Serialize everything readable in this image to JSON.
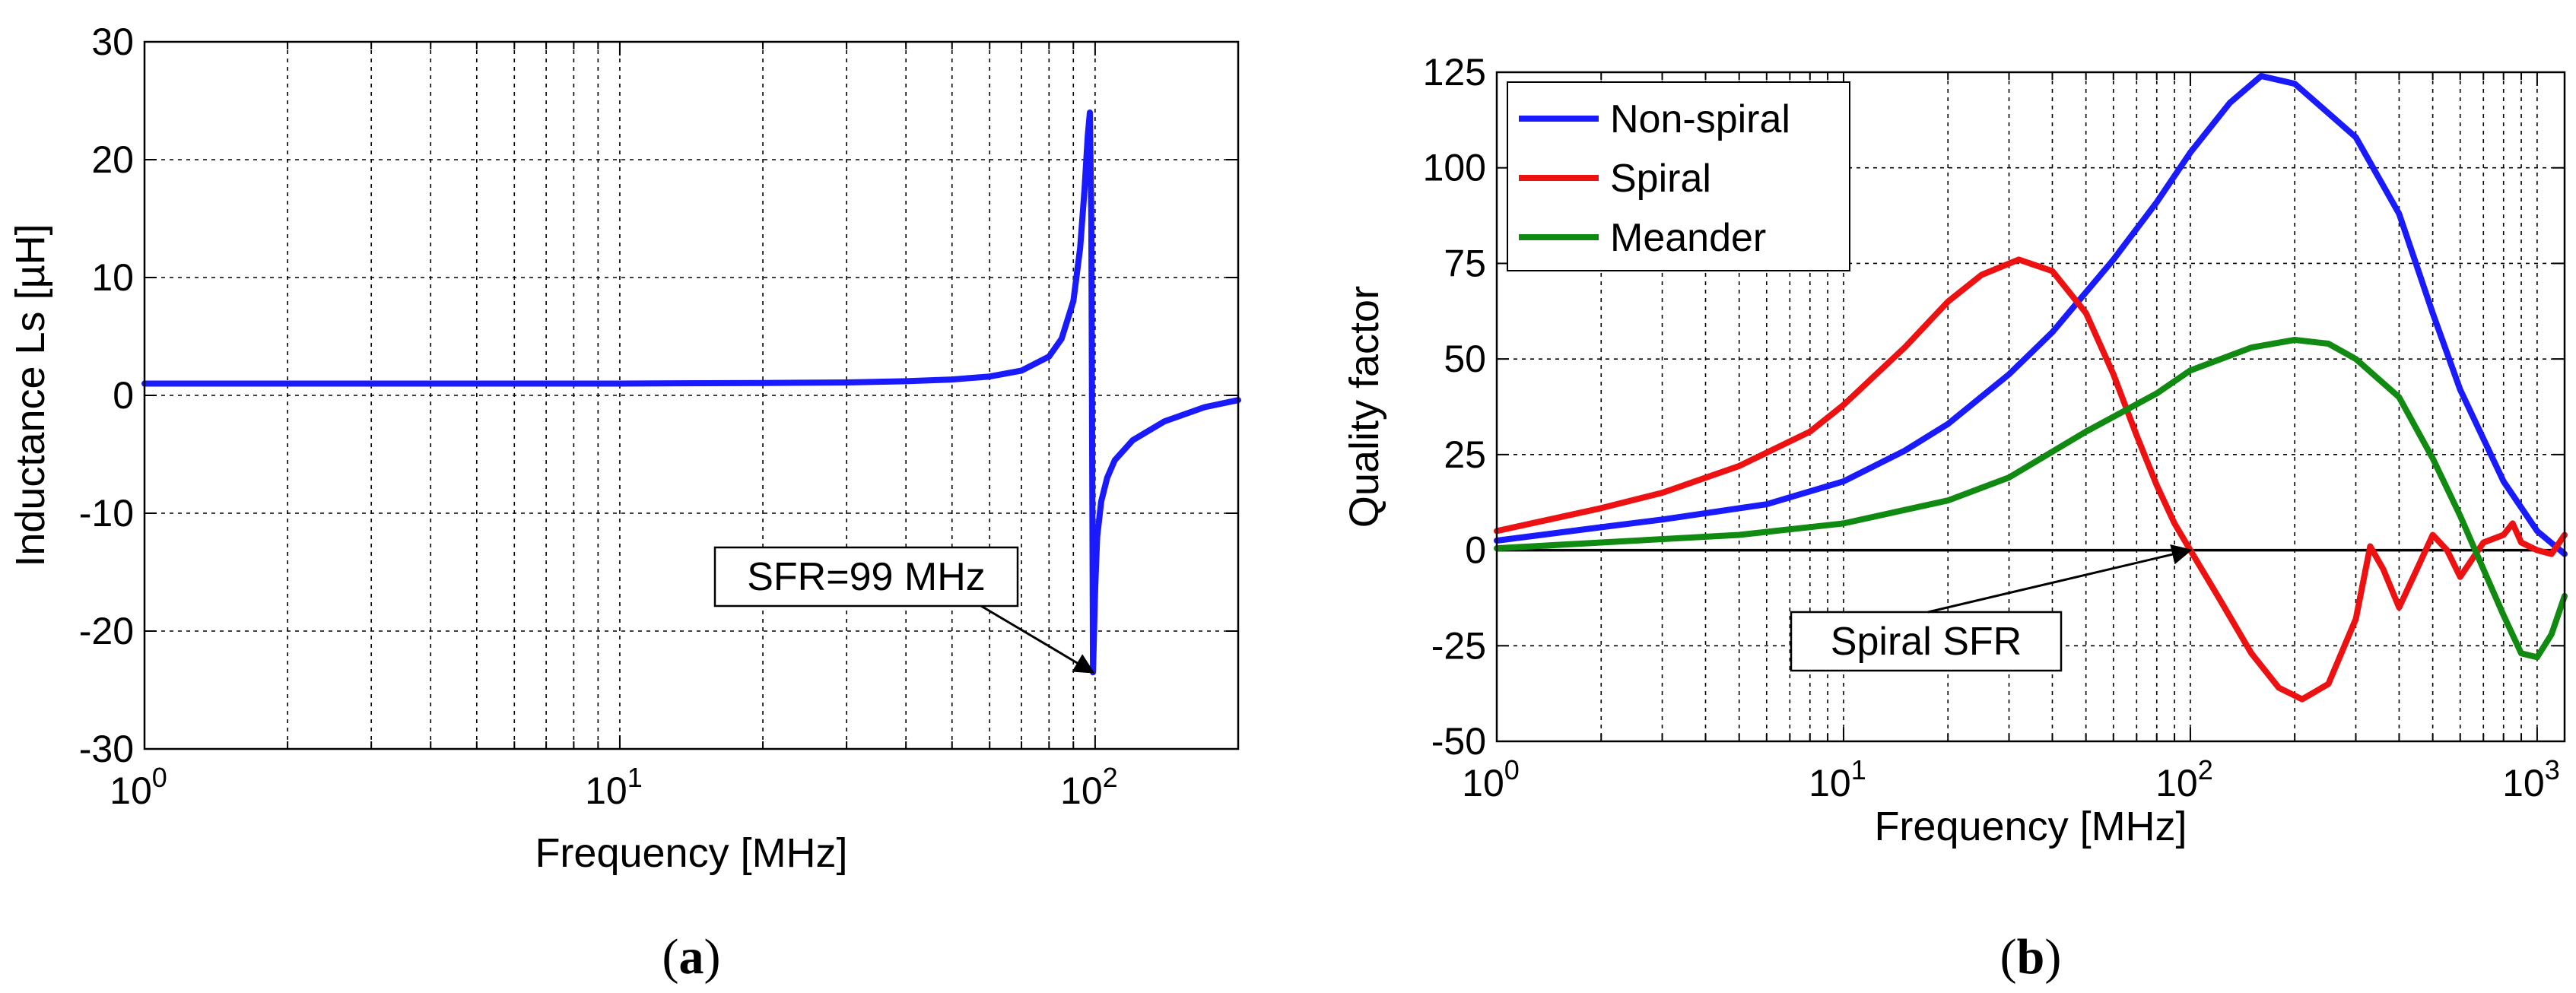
{
  "chart_data": [
    {
      "type": "line",
      "panel_label_open": "(",
      "panel_label_letter": "a",
      "panel_label_close": ")",
      "xlabel": "Frequency [MHz]",
      "ylabel": "Inductance Ls [µH]",
      "xscale": "log",
      "xlim": [
        1,
        200
      ],
      "ylim": [
        -30,
        30
      ],
      "grid": true,
      "xticks": [
        {
          "value": 1,
          "base": "10",
          "exp": "0"
        },
        {
          "value": 10,
          "base": "10",
          "exp": "1"
        },
        {
          "value": 100,
          "base": "10",
          "exp": "2"
        }
      ],
      "yticks": [
        {
          "value": 30,
          "label": "30"
        },
        {
          "value": 20,
          "label": "20"
        },
        {
          "value": 10,
          "label": "10"
        },
        {
          "value": 0,
          "label": "0"
        },
        {
          "value": -10,
          "label": "-10"
        },
        {
          "value": -20,
          "label": "-20"
        },
        {
          "value": -30,
          "label": "-30"
        }
      ],
      "series": [
        {
          "name": "Inductance",
          "color": "#1a1aff",
          "x": [
            1,
            2,
            5,
            10,
            20,
            30,
            40,
            50,
            60,
            70,
            80,
            85,
            90,
            93,
            95,
            96.5,
            97.5,
            98.2,
            99,
            100,
            101,
            103,
            106,
            110,
            120,
            140,
            170,
            200
          ],
          "y": [
            1.0,
            1.0,
            1.0,
            1.0,
            1.05,
            1.1,
            1.2,
            1.35,
            1.6,
            2.1,
            3.3,
            4.8,
            8.0,
            12.5,
            17.5,
            22.0,
            24.0,
            15.0,
            -23.5,
            -16.5,
            -12.0,
            -9.0,
            -7.0,
            -5.5,
            -3.8,
            -2.2,
            -1.0,
            -0.4
          ]
        }
      ],
      "annotation": {
        "text": "SFR=99 MHz",
        "x": 99,
        "y": -23.5
      }
    },
    {
      "type": "line",
      "panel_label_open": "(",
      "panel_label_letter": "b",
      "panel_label_close": ")",
      "xlabel": "Frequency [MHz]",
      "ylabel": "Quality factor",
      "xscale": "log",
      "xlim": [
        1,
        1200
      ],
      "ylim": [
        -50,
        125
      ],
      "grid": true,
      "legend_position": "top-left",
      "xticks": [
        {
          "value": 1,
          "base": "10",
          "exp": "0"
        },
        {
          "value": 10,
          "base": "10",
          "exp": "1"
        },
        {
          "value": 100,
          "base": "10",
          "exp": "2"
        },
        {
          "value": 1000,
          "base": "10",
          "exp": "3"
        }
      ],
      "yticks": [
        {
          "value": 125,
          "label": "125"
        },
        {
          "value": 100,
          "label": "100"
        },
        {
          "value": 75,
          "label": "75"
        },
        {
          "value": 50,
          "label": "50"
        },
        {
          "value": 25,
          "label": "25"
        },
        {
          "value": 0,
          "label": "0"
        },
        {
          "value": -25,
          "label": "-25"
        },
        {
          "value": -50,
          "label": "-50"
        }
      ],
      "series": [
        {
          "name": "Non-spiral",
          "color": "#1a1aff",
          "x": [
            1,
            2,
            3,
            6,
            10,
            15,
            20,
            30,
            40,
            60,
            80,
            100,
            130,
            160,
            200,
            300,
            400,
            500,
            600,
            800,
            1000,
            1200
          ],
          "y": [
            2.5,
            6,
            8,
            12,
            18,
            26,
            33,
            46,
            57,
            76,
            91,
            104,
            117,
            124,
            122,
            108,
            88,
            62,
            42,
            18,
            5,
            -1
          ]
        },
        {
          "name": "Spiral",
          "color": "#ee1111",
          "x": [
            1,
            2,
            3,
            5,
            8,
            10,
            15,
            20,
            25,
            32,
            40,
            50,
            60,
            70,
            80,
            90,
            100,
            120,
            150,
            180,
            210,
            250,
            300,
            330,
            360,
            400,
            450,
            500,
            550,
            600,
            700,
            800,
            850,
            900,
            1000,
            1100,
            1200
          ],
          "y": [
            5,
            11,
            15,
            22,
            31,
            38,
            53,
            65,
            72,
            76,
            73,
            62,
            46,
            30,
            17,
            7,
            0,
            -12,
            -27,
            -36,
            -39,
            -35,
            -18,
            1,
            -5,
            -15,
            -5,
            4,
            0,
            -7,
            2,
            4,
            7,
            2,
            0,
            -1,
            4
          ]
        },
        {
          "name": "Meander",
          "color": "#118a11",
          "x": [
            1,
            2,
            5,
            10,
            20,
            30,
            50,
            80,
            100,
            150,
            200,
            250,
            300,
            400,
            500,
            600,
            700,
            800,
            900,
            1000,
            1100,
            1200
          ],
          "y": [
            0.5,
            2,
            4,
            7,
            13,
            19,
            31,
            41,
            47,
            53,
            55,
            54,
            50,
            40,
            24,
            9,
            -5,
            -17,
            -27,
            -28,
            -22,
            -12
          ]
        }
      ],
      "annotation": {
        "text": "Spiral SFR",
        "x": 100,
        "y": 0
      }
    }
  ]
}
